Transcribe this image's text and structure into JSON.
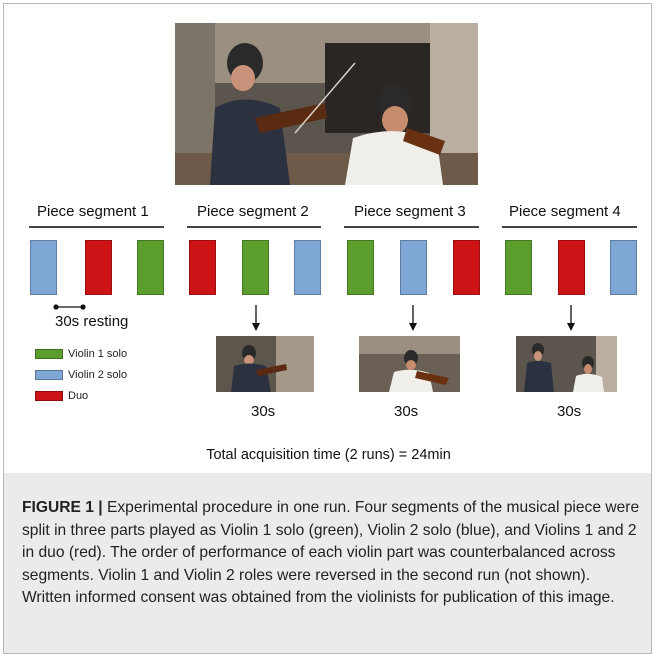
{
  "colors": {
    "violin1": "#5c9e2e",
    "violin2": "#7ea7d6",
    "duo": "#cc1416",
    "caption_bg": "#ebebeb"
  },
  "segments": [
    {
      "label": "Piece segment 1",
      "blocks": [
        "violin2",
        "duo",
        "violin1"
      ]
    },
    {
      "label": "Piece segment 2",
      "blocks": [
        "duo",
        "violin1",
        "violin2"
      ]
    },
    {
      "label": "Piece segment 3",
      "blocks": [
        "violin1",
        "violin2",
        "duo"
      ]
    },
    {
      "label": "Piece segment 4",
      "blocks": [
        "violin1",
        "duo",
        "violin2"
      ]
    }
  ],
  "resting_label": "30s resting",
  "legend": [
    {
      "color_key": "violin1",
      "label": "Violin 1 solo"
    },
    {
      "color_key": "violin2",
      "label": "Violin 2 solo"
    },
    {
      "color_key": "duo",
      "label": "Duo"
    }
  ],
  "clip_labels": [
    "30s",
    "30s",
    "30s"
  ],
  "total_time": "Total acquisition time (2 runs) = 24min",
  "caption": {
    "label": "FIGURE 1 |",
    "text": " Experimental procedure in one run. Four segments of the musical piece were split in three parts played as Violin 1 solo (green), Violin 2 solo (blue), and Violins 1 and 2 in duo (red). The order of performance of each violin part was counterbalanced across segments. Violin 1 and Violin 2 roles were reversed in the second run (not shown). Written informed consent was obtained from the violinists for publication of this image."
  }
}
